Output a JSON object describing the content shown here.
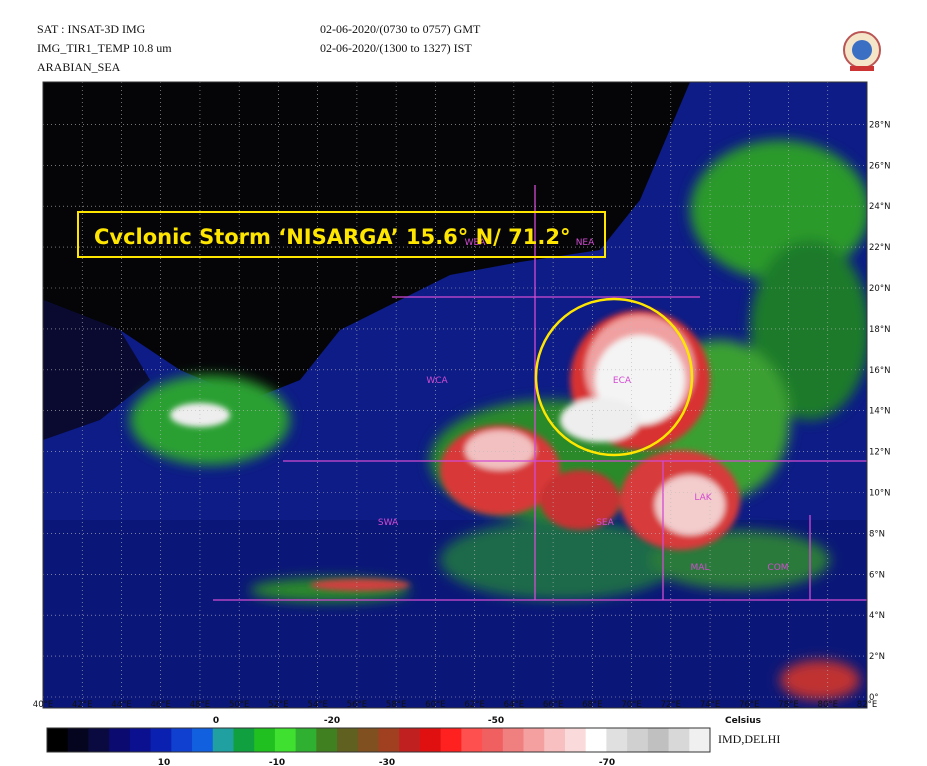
{
  "header": {
    "satellite": "SAT : INSAT-3D IMG",
    "channel": "IMG_TIR1_TEMP 10.8 um",
    "region": "ARABIAN_SEA",
    "time_gmt": "02-06-2020/(0730 to 0757) GMT",
    "time_ist": "02-06-2020/(1300 to 1327) IST"
  },
  "annotation": "Cvclonic Storm ‘NISARGA’ 15.6° N/ 71.2°",
  "region_labels": [
    "WEA",
    "NEA",
    "WCA",
    "ECA",
    "SWA",
    "SEA",
    "LAK",
    "MAL",
    "COM"
  ],
  "longitude_labels": [
    "40°E",
    "42°E",
    "44°E",
    "46°E",
    "48°E",
    "50°E",
    "52°E",
    "54°E",
    "56°E",
    "58°E",
    "60°E",
    "62°E",
    "64°E",
    "66°E",
    "68°E",
    "70°E",
    "72°E",
    "74°E",
    "76°E",
    "78°E",
    "80°E",
    "82°E"
  ],
  "latitude_labels": [
    "0°",
    "2°N",
    "4°N",
    "6°N",
    "8°N",
    "10°N",
    "12°N",
    "14°N",
    "16°N",
    "18°N",
    "20°N",
    "22°N",
    "24°N",
    "26°N",
    "28°N"
  ],
  "colorbar": {
    "top_labels": [
      "0",
      "-20",
      "-50"
    ],
    "unit": "Celsius",
    "bottom_labels": [
      "10",
      "-10",
      "-30",
      "-70"
    ],
    "credit": "IMD,DELHI"
  }
}
